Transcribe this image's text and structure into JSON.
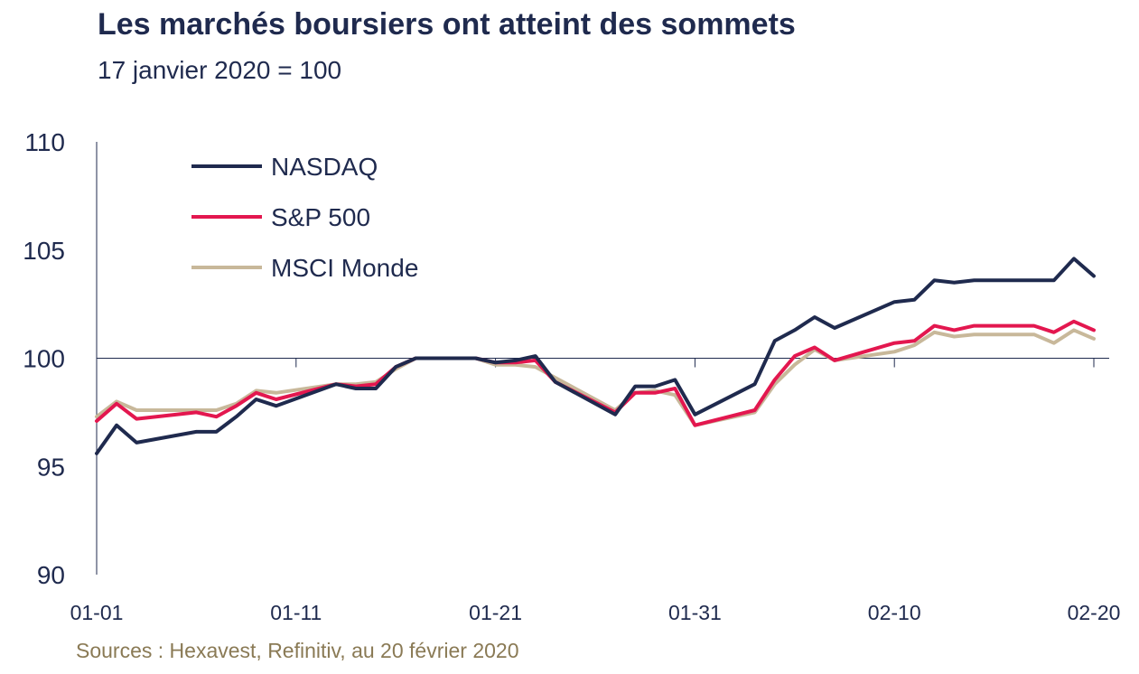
{
  "header": {
    "title": "Les marchés boursiers ont atteint des sommets",
    "subtitle": "17 janvier 2020 = 100"
  },
  "footer": {
    "source": "Sources : Hexavest, Refinitiv, au 20 février 2020"
  },
  "chart_data": {
    "type": "line",
    "title": "Les marchés boursiers ont atteint des sommets",
    "subtitle": "17 janvier 2020 = 100",
    "ylim": [
      90,
      110
    ],
    "yticks": [
      90,
      95,
      100,
      105,
      110
    ],
    "xticks": [
      "01-01",
      "01-11",
      "01-21",
      "01-31",
      "02-10",
      "02-20"
    ],
    "x_range_days": [
      0,
      50
    ],
    "reference_line": 100,
    "grid": false,
    "legend_position": "top-left",
    "x": [
      0,
      1,
      2,
      5,
      6,
      7,
      8,
      9,
      12,
      13,
      14,
      15,
      16,
      19,
      20,
      21,
      22,
      23,
      26,
      27,
      28,
      29,
      30,
      33,
      34,
      35,
      36,
      37,
      40,
      41,
      42,
      43,
      44,
      47,
      48,
      49,
      50
    ],
    "series": [
      {
        "name": "NASDAQ",
        "color": "#1f2a4e",
        "values": [
          95.6,
          96.9,
          96.1,
          96.6,
          96.6,
          97.3,
          98.1,
          97.8,
          98.8,
          98.6,
          98.6,
          99.6,
          100,
          100,
          99.8,
          99.9,
          100.1,
          98.9,
          97.4,
          98.7,
          98.7,
          99,
          97.4,
          98.8,
          100.8,
          101.3,
          101.9,
          101.4,
          102.6,
          102.7,
          103.6,
          103.5,
          103.6,
          103.6,
          103.6,
          104.6,
          103.8
        ]
      },
      {
        "name": "S&P 500",
        "color": "#e3174f",
        "values": [
          97.1,
          97.9,
          97.2,
          97.5,
          97.3,
          97.8,
          98.4,
          98.1,
          98.8,
          98.7,
          98.8,
          99.6,
          100,
          100,
          99.8,
          99.8,
          99.9,
          98.9,
          97.5,
          98.4,
          98.4,
          98.6,
          96.9,
          97.6,
          99,
          100.1,
          100.5,
          99.9,
          100.7,
          100.8,
          101.5,
          101.3,
          101.5,
          101.5,
          101.2,
          101.7,
          101.3
        ]
      },
      {
        "name": "MSCI Monde",
        "color": "#c8b89a",
        "values": [
          97.3,
          98,
          97.6,
          97.6,
          97.6,
          97.9,
          98.5,
          98.4,
          98.8,
          98.8,
          98.9,
          99.5,
          100,
          100,
          99.7,
          99.7,
          99.6,
          99.1,
          97.6,
          98.4,
          98.5,
          98.3,
          96.9,
          97.5,
          98.8,
          99.7,
          100.4,
          99.9,
          100.3,
          100.6,
          101.2,
          101,
          101.1,
          101.1,
          100.7,
          101.3,
          100.9
        ]
      }
    ]
  }
}
